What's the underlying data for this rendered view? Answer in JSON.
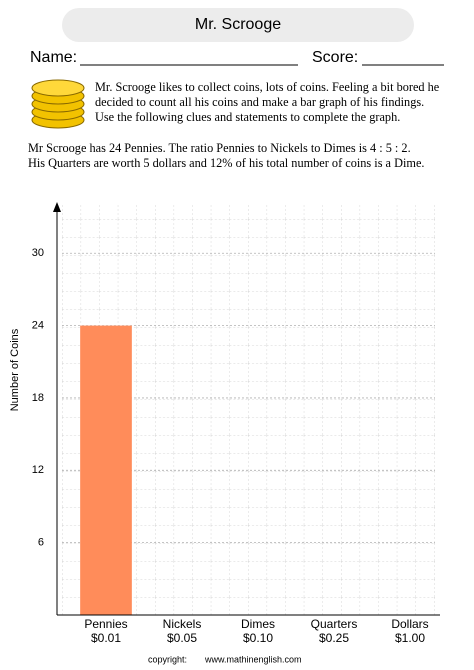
{
  "header": {
    "title": "Mr. Scrooge",
    "name_label": "Name:",
    "score_label": "Score:"
  },
  "intro": {
    "lines": [
      "Mr. Scrooge likes to collect coins, lots of coins. Feeling a bit bored he",
      "decided to count all his coins and make a bar graph of his findings.",
      "Use the following clues and statements to complete the graph."
    ]
  },
  "clues": {
    "lines": [
      "Mr Scrooge has 24 Pennies. The ratio Pennies to Nickels to Dimes is  4 : 5 : 2.",
      "His Quarters are worth 5 dollars and 12% of his total number of coins is a Dime."
    ]
  },
  "chart_data": {
    "type": "bar",
    "y_label": "Number of Coins",
    "categories": [
      "Pennies",
      "Nickels",
      "Dimes",
      "Quarters",
      "Dollars"
    ],
    "category_prices": [
      "$0.01",
      "$0.05",
      "$0.10",
      "$0.25",
      "$1.00"
    ],
    "values": [
      24,
      null,
      null,
      null,
      null
    ],
    "color": "#ff8c5a",
    "ylim": [
      0,
      34
    ],
    "yticks": [
      6,
      12,
      18,
      24,
      30
    ],
    "grid": true
  },
  "footer": {
    "copyright": "copyright:",
    "site": "www.mathinenglish.com"
  }
}
